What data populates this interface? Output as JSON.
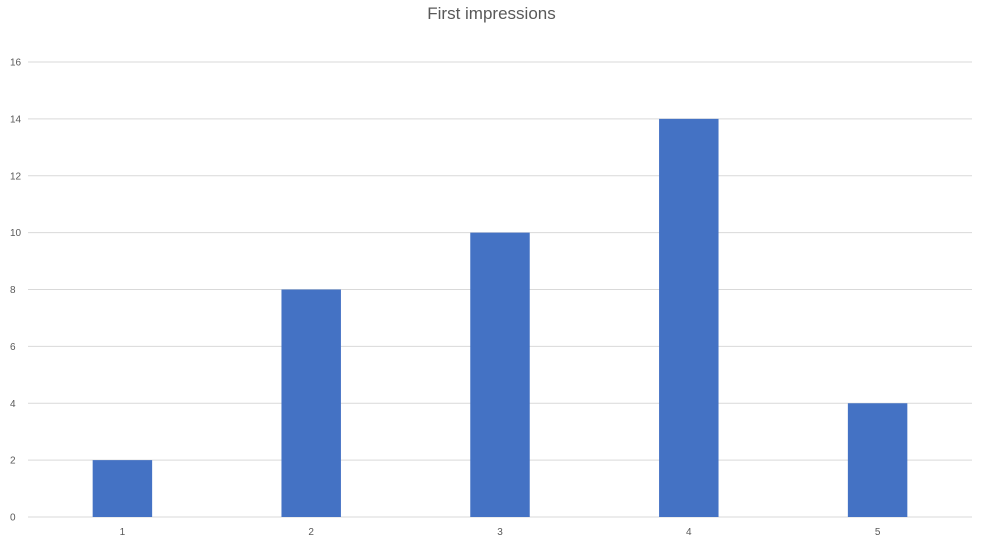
{
  "chart_data": {
    "type": "bar",
    "title": "First impressions",
    "xlabel": "",
    "ylabel": "",
    "categories": [
      "1",
      "2",
      "3",
      "4",
      "5"
    ],
    "values": [
      2,
      8,
      10,
      14,
      4
    ],
    "ylim": [
      0,
      16
    ],
    "yticks": [
      "0",
      "2",
      "4",
      "6",
      "8",
      "10",
      "12",
      "14",
      "16"
    ],
    "grid": true,
    "legend": "none",
    "colors": {
      "bar": "#4472C4",
      "grid": "#D9D9D9",
      "text": "#595959"
    }
  }
}
